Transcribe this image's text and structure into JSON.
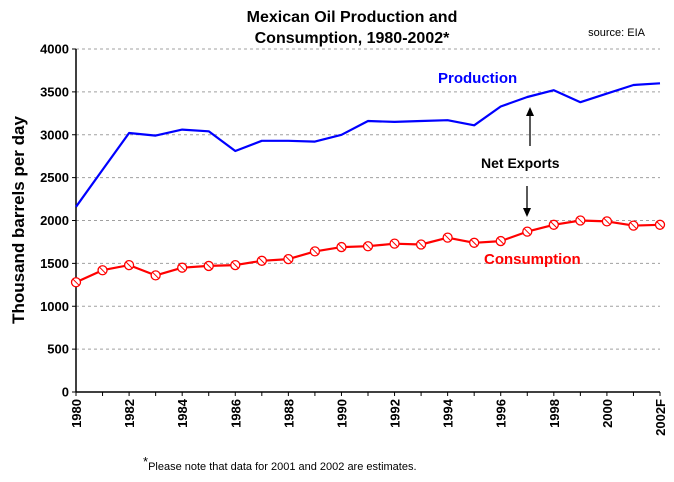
{
  "chart_data": {
    "type": "line",
    "title_line1": "Mexican Oil Production and",
    "title_line2": "Consumption, 1980-2002*",
    "source": "source: EIA",
    "ylabel": "Thousand barrels per day",
    "xlabel": "",
    "ylim": [
      0,
      4000
    ],
    "yticks": [
      0,
      500,
      1000,
      1500,
      2000,
      2500,
      3000,
      3500,
      4000
    ],
    "x": [
      1980,
      1981,
      1982,
      1983,
      1984,
      1985,
      1986,
      1987,
      1988,
      1989,
      1990,
      1991,
      1992,
      1993,
      1994,
      1995,
      1996,
      1997,
      1998,
      1999,
      2000,
      2001,
      2002
    ],
    "x_tick_labels": [
      "1980",
      "1982",
      "1984",
      "1986",
      "1988",
      "1990",
      "1992",
      "1994",
      "1996",
      "1998",
      "2000",
      "2002F"
    ],
    "x_tick_years": [
      1980,
      1982,
      1984,
      1986,
      1988,
      1990,
      1992,
      1994,
      1996,
      1998,
      2000,
      2002
    ],
    "grid": true,
    "series": [
      {
        "name": "Production",
        "color": "#0000ff",
        "markers": false,
        "values": [
          2160,
          2590,
          3020,
          2990,
          3060,
          3040,
          2810,
          2930,
          2930,
          2920,
          3000,
          3160,
          3150,
          3160,
          3170,
          3110,
          3330,
          3440,
          3520,
          3380,
          3480,
          3580,
          3600
        ]
      },
      {
        "name": "Consumption",
        "color": "#ff0000",
        "markers": true,
        "values": [
          1280,
          1420,
          1480,
          1360,
          1450,
          1470,
          1480,
          1530,
          1550,
          1640,
          1690,
          1700,
          1730,
          1720,
          1800,
          1740,
          1760,
          1870,
          1950,
          2000,
          1990,
          1940,
          1950
        ]
      }
    ],
    "annotation": "Net Exports",
    "footnote_star": "*",
    "footnote": "Please note that data for 2001 and 2002 are estimates."
  }
}
